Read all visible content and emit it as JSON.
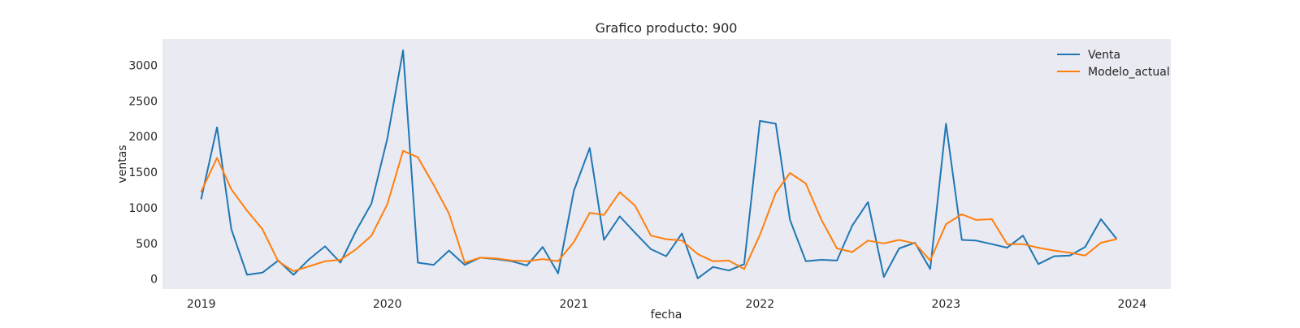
{
  "chart_data": {
    "type": "line",
    "title": "Grafico producto: 900",
    "xlabel": "fecha",
    "ylabel": "ventas",
    "x_start": "2019-01",
    "x_range": [
      "2018-10-17",
      "2024-03-17"
    ],
    "ylim": [
      -140,
      3370
    ],
    "x_ticks": [
      "2019",
      "2020",
      "2021",
      "2022",
      "2023",
      "2024"
    ],
    "y_ticks": [
      0,
      500,
      1000,
      1500,
      2000,
      2500,
      3000
    ],
    "grid": false,
    "legend_position": "top-right",
    "x": [
      "2019-01",
      "2019-02",
      "2019-03",
      "2019-04",
      "2019-05",
      "2019-06",
      "2019-07",
      "2019-08",
      "2019-09",
      "2019-10",
      "2019-11",
      "2019-12",
      "2020-01",
      "2020-02",
      "2020-03",
      "2020-04",
      "2020-05",
      "2020-06",
      "2020-07",
      "2020-08",
      "2020-09",
      "2020-10",
      "2020-11",
      "2020-12",
      "2021-01",
      "2021-02",
      "2021-03",
      "2021-04",
      "2021-05",
      "2021-06",
      "2021-07",
      "2021-08",
      "2021-09",
      "2021-10",
      "2021-11",
      "2021-12",
      "2022-01",
      "2022-02",
      "2022-03",
      "2022-04",
      "2022-05",
      "2022-06",
      "2022-07",
      "2022-08",
      "2022-09",
      "2022-10",
      "2022-11",
      "2022-12",
      "2023-01",
      "2023-02",
      "2023-03",
      "2023-04",
      "2023-05",
      "2023-06",
      "2023-07",
      "2023-08",
      "2023-09",
      "2023-10",
      "2023-11",
      "2023-12"
    ],
    "series": [
      {
        "name": "Venta",
        "color": "#1f77b4",
        "values": [
          1130,
          2130,
          700,
          60,
          90,
          260,
          60,
          280,
          460,
          230,
          680,
          1060,
          1970,
          3210,
          230,
          200,
          400,
          200,
          300,
          280,
          250,
          190,
          450,
          80,
          1240,
          1840,
          550,
          880,
          650,
          420,
          320,
          640,
          10,
          170,
          120,
          210,
          2220,
          2180,
          830,
          250,
          270,
          260,
          750,
          1080,
          30,
          430,
          510,
          140,
          2180,
          550,
          540,
          490,
          440,
          610,
          210,
          320,
          330,
          450,
          840,
          570
        ]
      },
      {
        "name": "Modelo_actual",
        "color": "#ff7f0e",
        "values": [
          1230,
          1700,
          1260,
          960,
          700,
          250,
          110,
          180,
          250,
          270,
          420,
          610,
          1050,
          1800,
          1710,
          1320,
          920,
          230,
          300,
          290,
          260,
          250,
          280,
          250,
          520,
          930,
          900,
          1220,
          1030,
          610,
          560,
          540,
          350,
          250,
          260,
          140,
          620,
          1210,
          1490,
          1340,
          840,
          430,
          380,
          540,
          500,
          550,
          500,
          260,
          770,
          910,
          830,
          840,
          490,
          490,
          440,
          400,
          370,
          330,
          510,
          560
        ]
      }
    ]
  }
}
